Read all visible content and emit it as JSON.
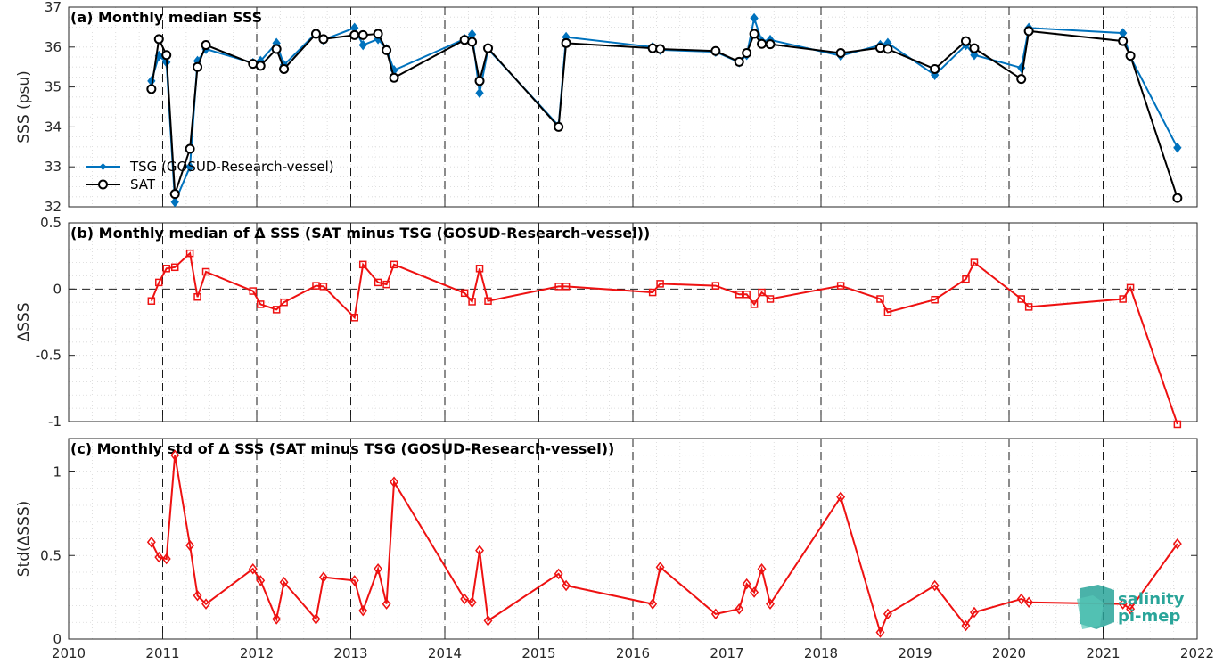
{
  "colors": {
    "tsg": "#0072BD",
    "sat": "#000000",
    "delta": "#ee1111",
    "logo": "#2aa59a"
  },
  "logo": {
    "line1": "salinity",
    "line2": "pi-mep"
  },
  "chart_data": [
    {
      "type": "line",
      "title": "(a) Monthly median SSS",
      "ylabel": "SSS (psu)",
      "xlim": [
        2010,
        2022
      ],
      "ylim": [
        32,
        37
      ],
      "yticks": [
        32,
        33,
        34,
        35,
        36,
        37
      ],
      "xticks": [
        2010,
        2011,
        2012,
        2013,
        2014,
        2015,
        2016,
        2017,
        2018,
        2019,
        2020,
        2021,
        2022
      ],
      "grid": "dotted minor grid, dashed vertical lines at year boundaries",
      "legend": "bottom-left",
      "series": [
        {
          "name": "TSG (GOSUD-Research-vessel)",
          "marker": "diamond",
          "x": [
            2010.88,
            2010.96,
            2011.04,
            2011.13,
            2011.29,
            2011.37,
            2011.46,
            2011.96,
            2012.04,
            2012.21,
            2012.29,
            2012.63,
            2012.71,
            2013.04,
            2013.13,
            2013.29,
            2013.38,
            2013.46,
            2014.21,
            2014.29,
            2014.37,
            2014.46,
            2015.21,
            2015.29,
            2016.21,
            2016.29,
            2016.88,
            2017.13,
            2017.21,
            2017.29,
            2017.37,
            2017.46,
            2018.21,
            2018.63,
            2018.71,
            2019.21,
            2019.54,
            2019.63,
            2020.13,
            2020.21,
            2021.21,
            2021.29,
            2021.79
          ],
          "y": [
            35.15,
            35.78,
            35.62,
            32.12,
            33.0,
            35.65,
            35.95,
            35.6,
            35.65,
            36.1,
            35.55,
            36.35,
            36.18,
            36.48,
            36.05,
            36.2,
            35.95,
            35.42,
            36.2,
            36.32,
            34.85,
            35.95,
            34.03,
            36.25,
            36.0,
            35.93,
            35.88,
            35.62,
            35.8,
            36.72,
            36.15,
            36.18,
            35.78,
            36.05,
            36.1,
            35.3,
            36.05,
            35.8,
            35.48,
            36.48,
            36.35,
            35.75,
            33.48
          ]
        },
        {
          "name": "SAT",
          "marker": "circle",
          "x": [
            2010.88,
            2010.96,
            2011.04,
            2011.13,
            2011.29,
            2011.37,
            2011.46,
            2011.96,
            2012.04,
            2012.21,
            2012.29,
            2012.63,
            2012.71,
            2013.04,
            2013.13,
            2013.29,
            2013.38,
            2013.46,
            2014.21,
            2014.29,
            2014.37,
            2014.46,
            2015.21,
            2015.29,
            2016.21,
            2016.29,
            2016.88,
            2017.13,
            2017.21,
            2017.29,
            2017.37,
            2017.46,
            2018.21,
            2018.63,
            2018.71,
            2019.21,
            2019.54,
            2019.63,
            2020.13,
            2020.21,
            2021.21,
            2021.29,
            2021.79
          ],
          "y": [
            34.95,
            36.2,
            35.8,
            32.32,
            33.45,
            35.5,
            36.05,
            35.58,
            35.53,
            35.95,
            35.45,
            36.33,
            36.2,
            36.3,
            36.3,
            36.33,
            35.92,
            35.23,
            36.18,
            36.13,
            35.15,
            35.97,
            34.0,
            36.1,
            35.97,
            35.95,
            35.9,
            35.63,
            35.85,
            36.33,
            36.08,
            36.07,
            35.85,
            35.98,
            35.95,
            35.45,
            36.15,
            35.97,
            35.2,
            36.4,
            36.15,
            35.78,
            32.22
          ]
        }
      ]
    },
    {
      "type": "line",
      "title": "(b) Monthly median of Δ SSS (SAT minus TSG (GOSUD-Research-vessel))",
      "ylabel": "ΔSSS",
      "xlim": [
        2010,
        2022
      ],
      "ylim": [
        -1,
        0.5
      ],
      "yticks": [
        -1,
        -0.5,
        0,
        0.5
      ],
      "ytick_labels": [
        "-1",
        "-0.5",
        "0",
        "0.5"
      ],
      "zero_line": "dashed",
      "series": [
        {
          "marker": "square",
          "x": [
            2010.88,
            2010.96,
            2011.04,
            2011.13,
            2011.29,
            2011.37,
            2011.46,
            2011.96,
            2012.04,
            2012.21,
            2012.29,
            2012.63,
            2012.71,
            2013.04,
            2013.13,
            2013.29,
            2013.38,
            2013.46,
            2014.21,
            2014.29,
            2014.37,
            2014.46,
            2015.21,
            2015.29,
            2016.21,
            2016.29,
            2016.88,
            2017.13,
            2017.21,
            2017.29,
            2017.37,
            2017.46,
            2018.21,
            2018.63,
            2018.71,
            2019.21,
            2019.54,
            2019.63,
            2020.13,
            2020.21,
            2021.21,
            2021.29,
            2021.79
          ],
          "y": [
            -0.09,
            0.05,
            0.155,
            0.165,
            0.27,
            -0.06,
            0.13,
            -0.015,
            -0.115,
            -0.155,
            -0.1,
            0.025,
            0.02,
            -0.215,
            0.185,
            0.05,
            0.035,
            0.185,
            -0.03,
            -0.095,
            0.155,
            -0.09,
            0.02,
            0.02,
            -0.025,
            0.04,
            0.025,
            -0.04,
            -0.04,
            -0.115,
            -0.025,
            -0.075,
            0.025,
            -0.075,
            -0.175,
            -0.08,
            0.075,
            0.2,
            -0.075,
            -0.135,
            -0.075,
            0.01,
            -1.02
          ]
        }
      ]
    },
    {
      "type": "line",
      "title": "(c) Monthly std of Δ SSS (SAT minus TSG (GOSUD-Research-vessel))",
      "ylabel": "Std(ΔSSS)",
      "xlim": [
        2010,
        2022
      ],
      "ylim": [
        0,
        1.2
      ],
      "yticks": [
        0,
        0.5,
        1
      ],
      "ytick_labels": [
        "0",
        "0.5",
        "1"
      ],
      "xtick_labels": [
        "2010",
        "2011",
        "2012",
        "2013",
        "2014",
        "2015",
        "2016",
        "2017",
        "2018",
        "2019",
        "2020",
        "2021",
        "2022"
      ],
      "series": [
        {
          "marker": "diamond",
          "x": [
            2010.88,
            2010.96,
            2011.04,
            2011.13,
            2011.29,
            2011.37,
            2011.46,
            2011.96,
            2012.04,
            2012.21,
            2012.29,
            2012.63,
            2012.71,
            2013.04,
            2013.13,
            2013.29,
            2013.38,
            2013.46,
            2014.21,
            2014.29,
            2014.37,
            2014.46,
            2015.21,
            2015.29,
            2016.21,
            2016.29,
            2016.88,
            2017.13,
            2017.21,
            2017.29,
            2017.37,
            2017.46,
            2018.21,
            2018.63,
            2018.71,
            2019.21,
            2019.54,
            2019.63,
            2020.13,
            2020.21,
            2021.21,
            2021.29,
            2021.79
          ],
          "y": [
            0.58,
            0.49,
            0.48,
            1.1,
            0.56,
            0.26,
            0.21,
            0.42,
            0.35,
            0.12,
            0.34,
            0.12,
            0.37,
            0.35,
            0.17,
            0.42,
            0.21,
            0.94,
            0.24,
            0.22,
            0.53,
            0.11,
            0.39,
            0.32,
            0.21,
            0.43,
            0.15,
            0.18,
            0.33,
            0.28,
            0.42,
            0.21,
            0.85,
            0.04,
            0.15,
            0.32,
            0.08,
            0.16,
            0.24,
            0.22,
            0.21,
            0.18,
            0.57
          ]
        }
      ]
    }
  ]
}
